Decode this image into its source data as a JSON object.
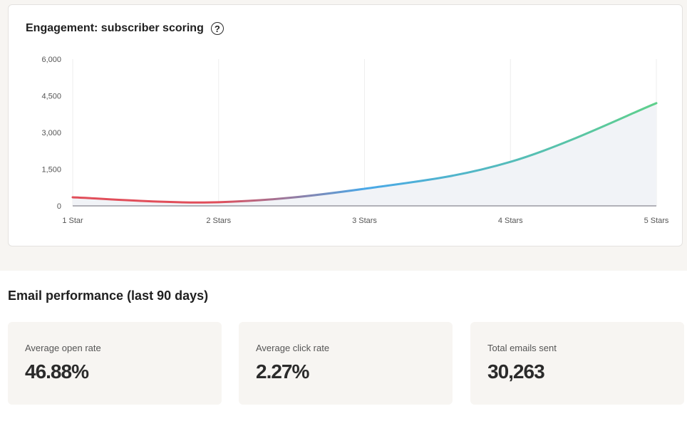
{
  "chart_card": {
    "title": "Engagement: subscriber scoring",
    "help_icon": "question-circle-icon",
    "help_glyph": "?"
  },
  "chart_data": {
    "type": "area",
    "title": "Engagement: subscriber scoring",
    "categories": [
      "1 Star",
      "2 Stars",
      "3 Stars",
      "4 Stars",
      "5 Stars"
    ],
    "series": [
      {
        "values": [
          350,
          150,
          700,
          1800,
          4200
        ]
      }
    ],
    "ylim": [
      0,
      6000
    ],
    "yticks": [
      0,
      1500,
      3000,
      4500,
      6000
    ],
    "ytick_labels": [
      "0",
      "1,500",
      "3,000",
      "4,500",
      "6,000"
    ],
    "grid": "vertical",
    "colors": {
      "line_low": "#e14e5a",
      "line_mid": "#4aa8e8",
      "line_high": "#5fd08c",
      "fill": "#f1f3f7"
    }
  },
  "performance": {
    "title": "Email performance (last 90 days)",
    "metrics": [
      {
        "label": "Average open rate",
        "value": "46.88%"
      },
      {
        "label": "Average click rate",
        "value": "2.27%"
      },
      {
        "label": "Total emails sent",
        "value": "30,263"
      }
    ]
  }
}
